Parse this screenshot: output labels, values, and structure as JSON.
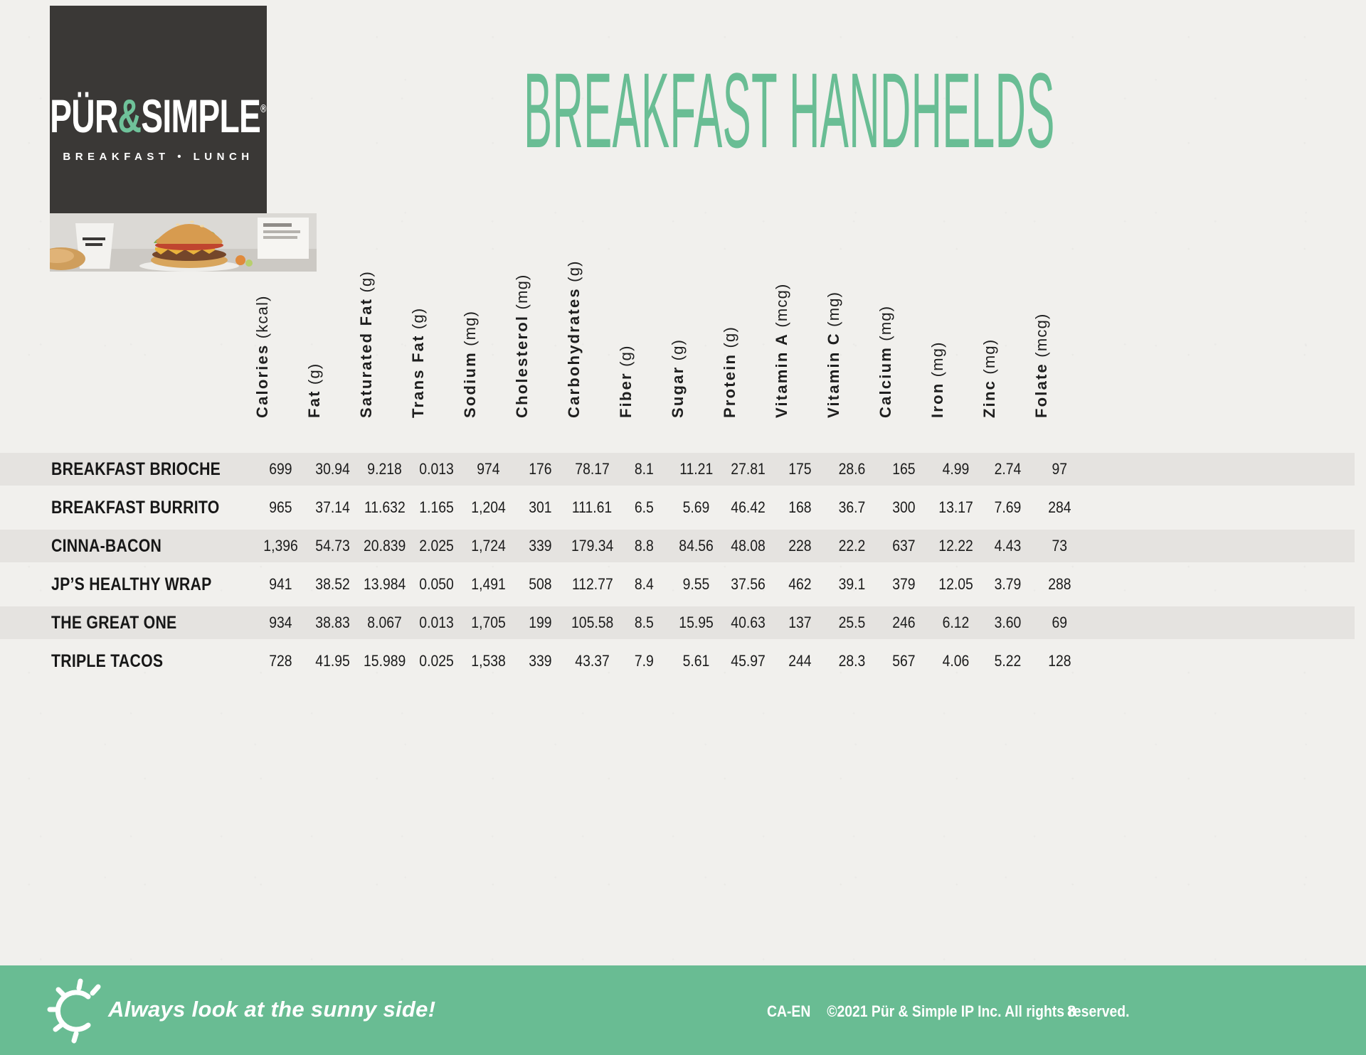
{
  "brand": {
    "name_part1": "PÜR",
    "ampersand": "&",
    "name_part2": "SIMPLE",
    "registered_mark": "®",
    "tagline": "BREAKFAST • LUNCH"
  },
  "page": {
    "title": "BREAKFAST HANDHELDS"
  },
  "colors": {
    "accent_teal": "#69bc93",
    "logo_background": "#3a3836",
    "stripe_gray": "#e5e3e0",
    "paper": "#f1f0ed",
    "text_dark": "#1e1e1e"
  },
  "icons": {
    "footer_sun": "sun-icon"
  },
  "table": {
    "columns": [
      {
        "name": "Calories",
        "unit": "(kcal)"
      },
      {
        "name": "Fat",
        "unit": "(g)"
      },
      {
        "name": "Saturated Fat",
        "unit": "(g)"
      },
      {
        "name": "Trans Fat",
        "unit": "(g)"
      },
      {
        "name": "Sodium",
        "unit": "(mg)"
      },
      {
        "name": "Cholesterol",
        "unit": "(mg)"
      },
      {
        "name": "Carbohydrates",
        "unit": "(g)"
      },
      {
        "name": "Fiber",
        "unit": "(g)"
      },
      {
        "name": "Sugar",
        "unit": "(g)"
      },
      {
        "name": "Protein",
        "unit": "(g)"
      },
      {
        "name": "Vitamin A",
        "unit": "(mcg)"
      },
      {
        "name": "Vitamin C",
        "unit": "(mg)"
      },
      {
        "name": "Calcium",
        "unit": "(mg)"
      },
      {
        "name": "Iron",
        "unit": "(mg)"
      },
      {
        "name": "Zinc",
        "unit": "(mg)"
      },
      {
        "name": "Folate",
        "unit": "(mcg)"
      }
    ],
    "rows": [
      {
        "label": "BREAKFAST BRIOCHE",
        "values": [
          "699",
          "30.94",
          "9.218",
          "0.013",
          "974",
          "176",
          "78.17",
          "8.1",
          "11.21",
          "27.81",
          "175",
          "28.6",
          "165",
          "4.99",
          "2.74",
          "97"
        ]
      },
      {
        "label": "BREAKFAST BURRITO",
        "values": [
          "965",
          "37.14",
          "11.632",
          "1.165",
          "1,204",
          "301",
          "111.61",
          "6.5",
          "5.69",
          "46.42",
          "168",
          "36.7",
          "300",
          "13.17",
          "7.69",
          "284"
        ]
      },
      {
        "label": "CINNA-BACON",
        "values": [
          "1,396",
          "54.73",
          "20.839",
          "2.025",
          "1,724",
          "339",
          "179.34",
          "8.8",
          "84.56",
          "48.08",
          "228",
          "22.2",
          "637",
          "12.22",
          "4.43",
          "73"
        ]
      },
      {
        "label": "JP’S HEALTHY WRAP",
        "values": [
          "941",
          "38.52",
          "13.984",
          "0.050",
          "1,491",
          "508",
          "112.77",
          "8.4",
          "9.55",
          "37.56",
          "462",
          "39.1",
          "379",
          "12.05",
          "3.79",
          "288"
        ]
      },
      {
        "label": "THE GREAT ONE",
        "values": [
          "934",
          "38.83",
          "8.067",
          "0.013",
          "1,705",
          "199",
          "105.58",
          "8.5",
          "15.95",
          "40.63",
          "137",
          "25.5",
          "246",
          "6.12",
          "3.60",
          "69"
        ]
      },
      {
        "label": "TRIPLE TACOS",
        "values": [
          "728",
          "41.95",
          "15.989",
          "0.025",
          "1,538",
          "339",
          "43.37",
          "7.9",
          "5.61",
          "45.97",
          "244",
          "28.3",
          "567",
          "4.06",
          "5.22",
          "128"
        ]
      }
    ]
  },
  "footer": {
    "tagline": "Always look at the sunny side!",
    "locale": "CA-EN",
    "copyright": "©2021 Pür & Simple IP Inc. All rights reserved.",
    "page_number": "8"
  }
}
